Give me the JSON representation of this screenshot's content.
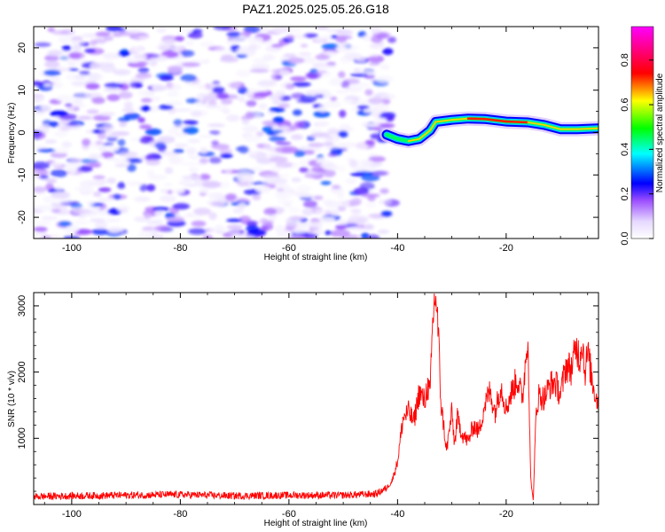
{
  "title": "PAZ1.2025.025.05.26.G18",
  "chart_data": [
    {
      "type": "heatmap",
      "xlabel": "Height of straight line (km)",
      "ylabel": "Frequency (Hz)",
      "colorbar_label": "Normalized spectral amplitude",
      "xlim": [
        -107,
        -3
      ],
      "ylim": [
        -25,
        25
      ],
      "xticks": [
        -100,
        -80,
        -60,
        -40,
        -20
      ],
      "yticks": [
        -20,
        -10,
        0,
        10,
        20
      ],
      "colorbar_range": [
        0,
        0.95
      ],
      "colorbar_ticks": [
        0.0,
        0.2,
        0.4,
        0.6,
        0.8
      ],
      "colormap": [
        "#ffffff",
        "#e0ccff",
        "#8a2be2",
        "#0000ff",
        "#00ffff",
        "#00ff00",
        "#ffff00",
        "#ff0000",
        "#ff00ff"
      ],
      "noise_region": {
        "x_range": [
          -107,
          -41
        ],
        "freq_range": [
          -25,
          25
        ],
        "amplitude_range": [
          0.02,
          0.3
        ]
      },
      "signal_ridge": {
        "x": [
          -42,
          -40,
          -38,
          -36,
          -34,
          -33,
          -30,
          -27,
          -24,
          -20,
          -16,
          -13,
          -10,
          -7,
          -3
        ],
        "freq": [
          -0.5,
          -1.5,
          -2.0,
          -1.5,
          0.5,
          2.5,
          3.0,
          3.3,
          3.2,
          2.6,
          2.4,
          1.8,
          0.8,
          0.8,
          1.0
        ],
        "amplitude": [
          0.3,
          0.45,
          0.5,
          0.5,
          0.55,
          0.5,
          0.55,
          0.85,
          0.8,
          0.95,
          0.9,
          0.6,
          0.75,
          0.7,
          0.5
        ]
      },
      "colors": {
        "noise": "#8a2be2",
        "ridge_edge": "#0000ff",
        "ridge_core": "#ff0000"
      }
    },
    {
      "type": "line",
      "xlabel": "Height of straight line (km)",
      "ylabel": "SNR (10 * v/v)",
      "xlim": [
        -107,
        -3
      ],
      "ylim": [
        0,
        3200
      ],
      "xticks": [
        -100,
        -80,
        -60,
        -40,
        -20
      ],
      "yticks": [
        1000,
        2000,
        3000
      ],
      "color": "#ff0000",
      "x": [
        -107,
        -100,
        -90,
        -80,
        -70,
        -60,
        -50,
        -44,
        -42,
        -41,
        -40,
        -39,
        -38,
        -37,
        -36,
        -35,
        -34.5,
        -34,
        -33.5,
        -33,
        -32.5,
        -32,
        -31.5,
        -31,
        -30,
        -29.5,
        -29,
        -28,
        -27,
        -26,
        -25,
        -24,
        -23,
        -22,
        -21,
        -20,
        -19,
        -18,
        -17,
        -16,
        -15.5,
        -15,
        -14.5,
        -14,
        -13,
        -12,
        -11,
        -10,
        -9,
        -8,
        -7,
        -6.5,
        -6,
        -5.5,
        -5,
        -4,
        -3
      ],
      "y": [
        120,
        130,
        140,
        150,
        130,
        140,
        140,
        160,
        250,
        360,
        650,
        1300,
        1400,
        1250,
        1700,
        1550,
        1800,
        1650,
        2800,
        3200,
        2600,
        1500,
        1200,
        800,
        1400,
        900,
        1300,
        1050,
        950,
        1200,
        1100,
        1500,
        1700,
        1400,
        1800,
        1450,
        1700,
        1900,
        1600,
        2600,
        400,
        50,
        1400,
        1650,
        1600,
        1800,
        1850,
        1650,
        2100,
        2050,
        2400,
        2200,
        2500,
        2000,
        2300,
        1800,
        1500
      ]
    }
  ]
}
